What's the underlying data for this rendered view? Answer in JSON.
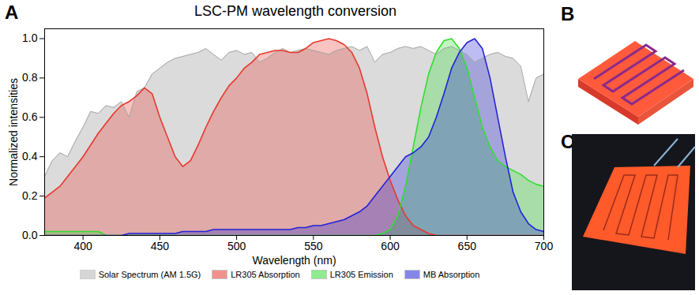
{
  "chart_data": {
    "type": "area",
    "panel_label": "A",
    "title": "LSC-PM wavelength conversion",
    "x_label": "Wavelength (nm)",
    "y_label": "Normalized intensities",
    "x": [
      375,
      380,
      385,
      390,
      395,
      400,
      405,
      410,
      415,
      420,
      425,
      430,
      435,
      440,
      445,
      450,
      455,
      460,
      465,
      470,
      475,
      480,
      485,
      490,
      495,
      500,
      505,
      510,
      515,
      520,
      525,
      530,
      535,
      540,
      545,
      550,
      555,
      560,
      565,
      570,
      575,
      580,
      585,
      590,
      595,
      600,
      605,
      610,
      615,
      620,
      625,
      630,
      635,
      640,
      645,
      650,
      655,
      660,
      665,
      670,
      675,
      680,
      685,
      690,
      695,
      700
    ],
    "series": [
      {
        "name": "Solar Spectrum (AM 1.5G)",
        "color": "#a6a6a6",
        "values": [
          0.3,
          0.38,
          0.42,
          0.4,
          0.48,
          0.55,
          0.63,
          0.62,
          0.66,
          0.65,
          0.68,
          0.6,
          0.73,
          0.75,
          0.82,
          0.85,
          0.88,
          0.9,
          0.91,
          0.92,
          0.93,
          0.95,
          0.92,
          0.89,
          0.93,
          0.94,
          0.92,
          0.93,
          0.88,
          0.9,
          0.93,
          0.95,
          0.93,
          0.94,
          0.95,
          0.94,
          0.93,
          0.92,
          0.94,
          0.95,
          0.96,
          0.94,
          0.96,
          0.88,
          0.92,
          0.93,
          0.95,
          0.96,
          0.95,
          0.96,
          0.94,
          0.92,
          0.95,
          0.96,
          0.94,
          0.92,
          0.88,
          0.9,
          0.92,
          0.93,
          0.91,
          0.9,
          0.86,
          0.68,
          0.8,
          0.82
        ]
      },
      {
        "name": "LR305 Absorption",
        "color": "#e8392f",
        "values": [
          0.19,
          0.22,
          0.25,
          0.3,
          0.35,
          0.4,
          0.46,
          0.52,
          0.57,
          0.62,
          0.66,
          0.68,
          0.71,
          0.75,
          0.72,
          0.6,
          0.5,
          0.4,
          0.35,
          0.38,
          0.46,
          0.55,
          0.63,
          0.7,
          0.76,
          0.8,
          0.85,
          0.88,
          0.92,
          0.93,
          0.94,
          0.94,
          0.93,
          0.93,
          0.95,
          0.98,
          0.99,
          1.0,
          0.99,
          0.97,
          0.93,
          0.85,
          0.72,
          0.55,
          0.4,
          0.28,
          0.18,
          0.1,
          0.05,
          0.03,
          0.01,
          0,
          0,
          0,
          0,
          0,
          0,
          0,
          0,
          0,
          0,
          0,
          0,
          0,
          0,
          0
        ]
      },
      {
        "name": "LR305 Emission",
        "color": "#33dd33",
        "values": [
          0.02,
          0.02,
          0.02,
          0.02,
          0.02,
          0.02,
          0.02,
          0.02,
          0,
          0,
          0,
          0,
          0,
          0,
          0,
          0,
          0,
          0,
          0,
          0,
          0,
          0,
          0,
          0,
          0,
          0,
          0,
          0,
          0,
          0,
          0,
          0,
          0,
          0,
          0,
          0,
          0,
          0,
          0,
          0,
          0,
          0,
          0,
          0,
          0.01,
          0.03,
          0.1,
          0.25,
          0.45,
          0.65,
          0.82,
          0.93,
          0.99,
          1.0,
          0.95,
          0.85,
          0.7,
          0.55,
          0.45,
          0.38,
          0.35,
          0.33,
          0.31,
          0.28,
          0.26,
          0.25
        ]
      },
      {
        "name": "MB Absorption",
        "color": "#2424d8",
        "values": [
          0,
          0,
          0,
          0,
          0,
          0,
          0,
          0,
          0,
          0,
          0,
          0.01,
          0.01,
          0.01,
          0.01,
          0.01,
          0.01,
          0.01,
          0.02,
          0.02,
          0.02,
          0.02,
          0.03,
          0.03,
          0.03,
          0.03,
          0.03,
          0.03,
          0.03,
          0.03,
          0.03,
          0.03,
          0.03,
          0.04,
          0.04,
          0.05,
          0.05,
          0.06,
          0.07,
          0.08,
          0.1,
          0.12,
          0.15,
          0.2,
          0.25,
          0.3,
          0.35,
          0.4,
          0.42,
          0.45,
          0.5,
          0.6,
          0.72,
          0.85,
          0.93,
          0.98,
          1.0,
          0.95,
          0.8,
          0.6,
          0.4,
          0.22,
          0.12,
          0.06,
          0.03,
          0.02
        ]
      }
    ],
    "xlim": [
      375,
      700
    ],
    "xticks": [
      400,
      450,
      500,
      550,
      600,
      650,
      700
    ],
    "ylim": [
      0,
      1.05
    ],
    "yticks": [
      {
        "value": 0,
        "label": "0.0"
      },
      0.2,
      0.4,
      0.6,
      0.8,
      {
        "value": 1,
        "label": "1.0"
      }
    ],
    "grid": false,
    "legend": "bottom",
    "side_panels": [
      "B",
      "C"
    ]
  }
}
